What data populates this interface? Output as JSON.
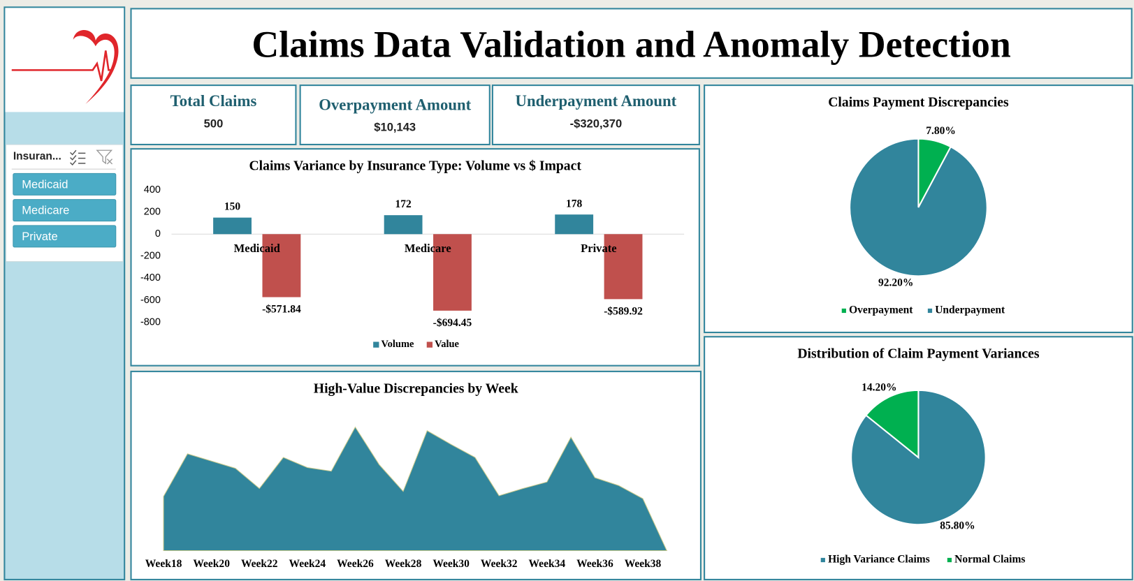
{
  "header": {
    "title": "Claims Data Validation and Anomaly Detection"
  },
  "kpis": [
    {
      "label": "Total Claims",
      "value": "500"
    },
    {
      "label": "Overpayment Amount",
      "value": "$10,143"
    },
    {
      "label": "Underpayment Amount",
      "value": "-$320,370"
    }
  ],
  "slicer": {
    "title": "Insuran...",
    "items": [
      "Medicaid",
      "Medicare",
      "Private"
    ]
  },
  "chart_data": [
    {
      "type": "bar",
      "title": "Claims Variance by Insurance Type: Volume vs $ Impact",
      "categories": [
        "Medicaid",
        "Medicare",
        "Private"
      ],
      "series": [
        {
          "name": "Volume",
          "color": "#31859c",
          "values": [
            150,
            172,
            178
          ]
        },
        {
          "name": "Value",
          "color": "#c0504d",
          "values": [
            -571.84,
            -694.45,
            -589.92
          ],
          "value_labels": [
            "-$571.84",
            "-$694.45",
            "-$589.92"
          ]
        }
      ],
      "ylim": [
        -800,
        400
      ],
      "yticks": [
        400,
        200,
        0,
        -200,
        -400,
        -600,
        -800
      ],
      "legend": "bottom"
    },
    {
      "type": "area",
      "title": "High-Value Discrepancies by Week",
      "categories": [
        "Week18",
        null,
        "Week20",
        null,
        "Week22",
        null,
        "Week24",
        null,
        "Week26",
        null,
        "Week28",
        null,
        "Week30",
        null,
        "Week32",
        null,
        "Week34",
        null,
        "Week36",
        null,
        "Week38",
        null
      ],
      "values": [
        75,
        134,
        124,
        114,
        86,
        129,
        115,
        110,
        171,
        119,
        82,
        166,
        147,
        129,
        76,
        86,
        95,
        157,
        101,
        90,
        72,
        0
      ],
      "color": "#31859c",
      "ylim": [
        0,
        180
      ]
    },
    {
      "type": "pie",
      "title": "Claims Payment Discrepancies",
      "categories": [
        "Overpayment",
        "Underpayment"
      ],
      "values": [
        7.8,
        92.2
      ],
      "value_labels": [
        "7.80%",
        "92.20%"
      ],
      "colors": [
        "#00b050",
        "#31859c"
      ],
      "legend": "bottom"
    },
    {
      "type": "pie",
      "title": "Distribution of Claim Payment Variances",
      "categories": [
        "High Variance Claims",
        "Normal Claims"
      ],
      "values": [
        85.8,
        14.2
      ],
      "value_labels": [
        "85.80%",
        "14.20%"
      ],
      "colors": [
        "#31859c",
        "#00b050"
      ],
      "legend": "bottom"
    }
  ]
}
